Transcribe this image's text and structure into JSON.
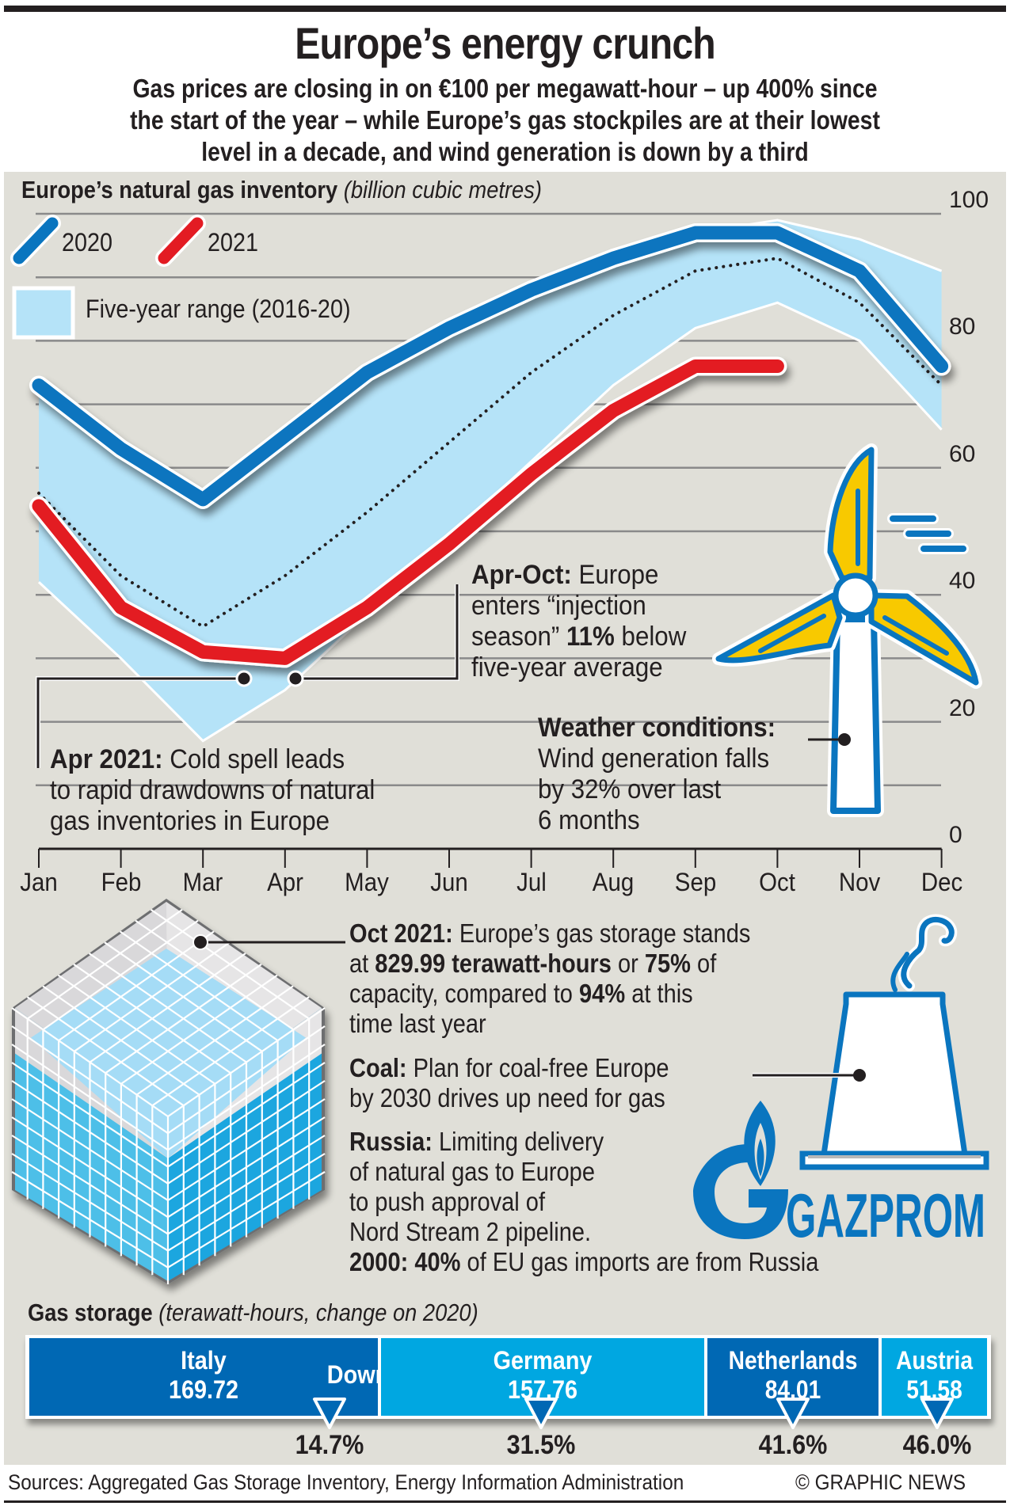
{
  "header": {
    "title": "Europe’s energy crunch",
    "subtitle_lines": [
      "Gas prices are closing in on €100 per megawatt-hour – up 400% since",
      "the start of the year – while Europe’s gas stockpiles are at their lowest",
      "level in a decade, and wind generation is down by a third"
    ]
  },
  "colors": {
    "panel": "#e0dfd8",
    "series_2020": "#0a75bf",
    "series_2021": "#e31b23",
    "range_fill": "#b5e3f8",
    "dark_blue": "#0068b4",
    "light_blue": "#00a7e1",
    "turbine_yellow": "#f8c900"
  },
  "chart_data": {
    "type": "line",
    "title": "Europe’s natural gas inventory",
    "unit_label": "(billion cubic metres)",
    "x": [
      "Jan",
      "Feb",
      "Mar",
      "Apr",
      "May",
      "Jun",
      "Jul",
      "Aug",
      "Sep",
      "Oct",
      "Nov",
      "Dec"
    ],
    "ylim": [
      0,
      100
    ],
    "yticks": [
      0,
      20,
      40,
      60,
      80,
      100
    ],
    "ytick_labels": [
      "0",
      "20",
      "40",
      "60",
      "80",
      "100"
    ],
    "grid_step": 10,
    "grid": true,
    "legend_placement": "top-left",
    "series": [
      {
        "name": "2020",
        "values": [
          73,
          63,
          55,
          65,
          75,
          82,
          88,
          93,
          97,
          97,
          91,
          76
        ]
      },
      {
        "name": "2021",
        "values": [
          54,
          38,
          31,
          30,
          38,
          48,
          59,
          69,
          76,
          76,
          null,
          null
        ]
      },
      {
        "name": "Five-year average",
        "style": "dotted",
        "values": [
          56,
          43,
          35,
          43,
          53,
          64,
          75,
          84,
          91,
          93,
          86,
          73
        ]
      }
    ],
    "band": {
      "name": "Five-year range (2016-20)",
      "upper": [
        73,
        63,
        55,
        65,
        75,
        82,
        88,
        93,
        97,
        99,
        96,
        91
      ],
      "lower": [
        42,
        30,
        17,
        25,
        37,
        49,
        61,
        73,
        82,
        86,
        80,
        66
      ]
    },
    "legend": [
      "2020",
      "2021",
      "Five-year range (2016-20)"
    ]
  },
  "annotations": {
    "apr_oct": {
      "bold": "Apr-Oct:",
      "lines": [
        " Europe",
        "enters “injection",
        "season” ",
        "11%",
        " below",
        "five-year average"
      ]
    },
    "weather": {
      "bold": "Weather conditions:",
      "lines": [
        "Wind generation falls",
        "by 32% over last",
        "6 months"
      ]
    },
    "apr_2021": {
      "bold": "Apr 2021:",
      "lines": [
        " Cold spell leads",
        "to rapid drawdowns of natural",
        "gas inventories  in Europe"
      ]
    }
  },
  "storage_notes": {
    "oct_2021": {
      "bold": "Oct 2021:",
      "t1": " Europe’s gas storage stands",
      "t2a": "at ",
      "b2a": "829.99 terawatt-hours",
      "t2b": " or ",
      "b2b": "75%",
      "t2c": " of",
      "t3a": "capacity, compared to ",
      "b3": "94%",
      "t3b": " at this",
      "t4": "time last year"
    },
    "coal": {
      "bold": "Coal:",
      "t1": " Plan for coal-free Europe",
      "t2": "by 2030 drives up need for gas"
    },
    "russia": {
      "bold": "Russia:",
      "t1": " Limiting delivery",
      "t2": "of natural gas to Europe",
      "t3": "to push approval of",
      "t4": "Nord Stream 2 pipeline."
    },
    "imports": {
      "bold_a": "2000:",
      "bold_b": " 40%",
      "t": " of EU gas imports are from Russia"
    }
  },
  "logo": {
    "text": "GAZPROM"
  },
  "gas_storage": {
    "title": "Gas storage",
    "unit_label": "(terawatt-hours, change on 2020)",
    "direction_label": "Down",
    "countries": [
      {
        "name": "Italy",
        "value": "169.72",
        "change": "14.7%"
      },
      {
        "name": "Germany",
        "value": "157.76",
        "change": "31.5%"
      },
      {
        "name": "Netherlands",
        "value": "84.01",
        "change": "41.6%"
      },
      {
        "name": "Austria",
        "value": "51.58",
        "change": "46.0%"
      }
    ]
  },
  "footer": {
    "sources": "Sources: Aggregated Gas Storage Inventory, Energy Information Administration",
    "credit": "© GRAPHIC NEWS"
  }
}
